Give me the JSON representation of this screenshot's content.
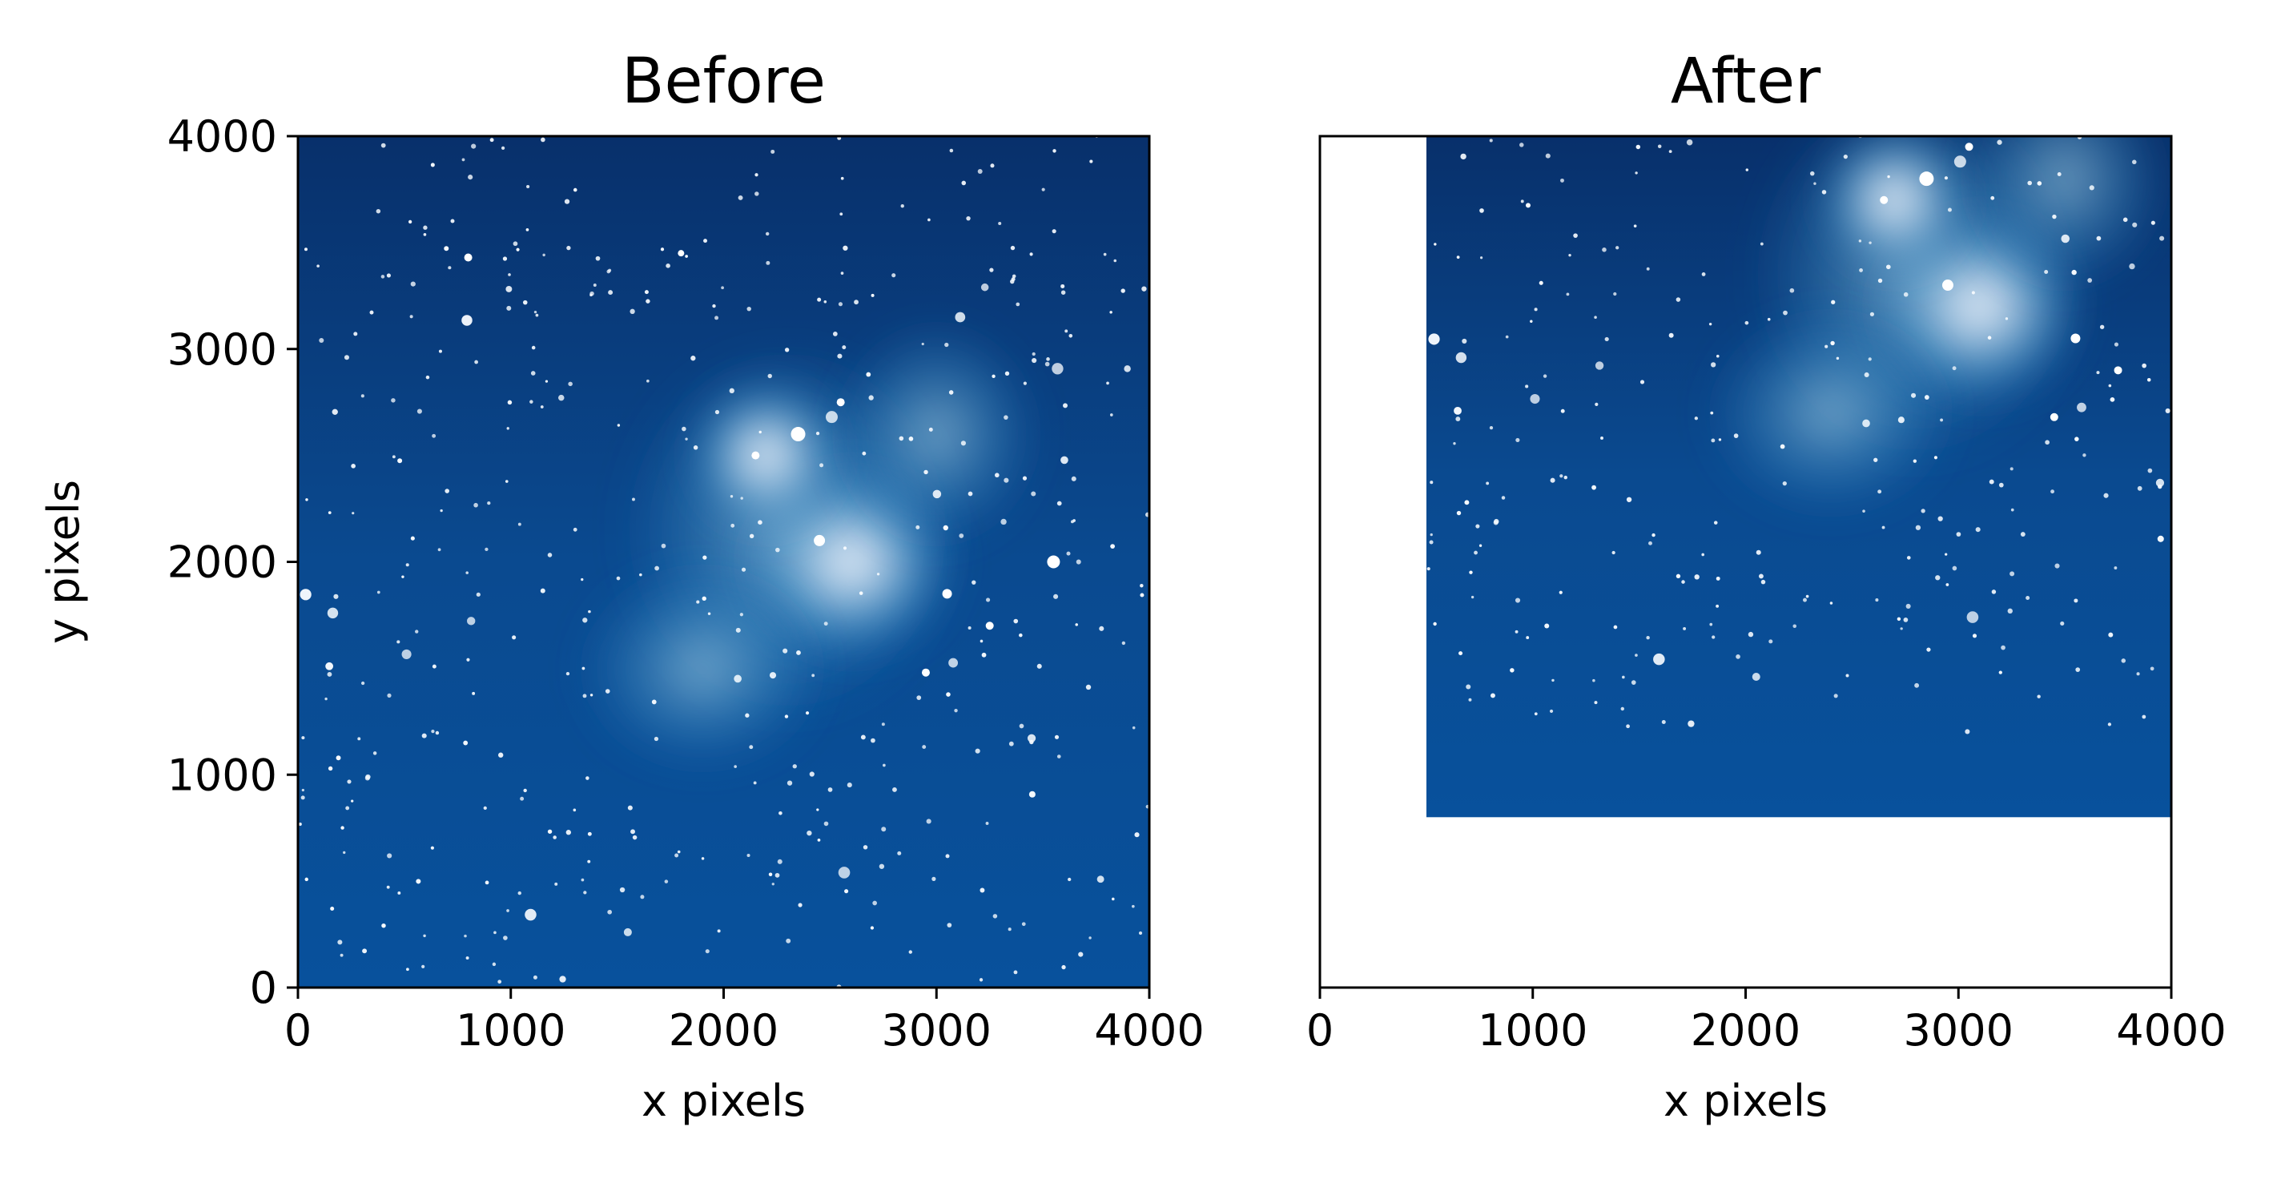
{
  "chart_data": [
    {
      "type": "heatmap",
      "title": "Before",
      "xlabel": "x pixels",
      "ylabel": "y pixels",
      "xlim": [
        0,
        4000
      ],
      "ylim": [
        0,
        4000
      ],
      "xticks": [
        0,
        1000,
        2000,
        3000,
        4000
      ],
      "yticks": [
        0,
        1000,
        2000,
        3000,
        4000
      ],
      "xtick_labels": [
        "0",
        "1000",
        "2000",
        "3000",
        "4000"
      ],
      "ytick_labels": [
        "0",
        "1000",
        "2000",
        "3000",
        "4000"
      ],
      "image_extent": {
        "x": [
          0,
          4000
        ],
        "y": [
          0,
          4000
        ]
      },
      "colormap": [
        "#08306b",
        "#08519c",
        "#2171b5",
        "#6baed6",
        "#c6dbef",
        "#f7fbff"
      ],
      "grid": false
    },
    {
      "type": "heatmap",
      "title": "After",
      "xlabel": "x pixels",
      "ylabel": "",
      "xlim": [
        0,
        4000
      ],
      "ylim": [
        0,
        4000
      ],
      "xticks": [
        0,
        1000,
        2000,
        3000,
        4000
      ],
      "yticks": [],
      "xtick_labels": [
        "0",
        "1000",
        "2000",
        "3000",
        "4000"
      ],
      "ytick_labels": [],
      "image_extent": {
        "x": [
          500,
          4000
        ],
        "y": [
          800,
          4000
        ]
      },
      "colormap": [
        "#08306b",
        "#08519c",
        "#2171b5",
        "#6baed6",
        "#c6dbef",
        "#f7fbff"
      ],
      "grid": false
    }
  ]
}
